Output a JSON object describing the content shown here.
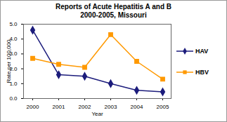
{
  "chart_data": {
    "type": "line",
    "title": "Reports of Acute Hepatitis A and B",
    "subtitle": "2000-2005, Missouri",
    "x_label": "Year",
    "y_label": "Rate per 100,000",
    "categories": [
      "2000",
      "2001",
      "2002",
      "2003",
      "2004",
      "2005"
    ],
    "series": [
      {
        "name": "HAV",
        "color": "#1c1c7c",
        "marker": "diamond",
        "values": [
          4.6,
          1.6,
          1.5,
          1.0,
          0.55,
          0.45
        ]
      },
      {
        "name": "HBV",
        "color": "#ff9900",
        "marker": "square",
        "values": [
          2.7,
          2.3,
          2.1,
          4.3,
          2.5,
          1.3
        ]
      }
    ],
    "ylim": [
      0,
      5
    ],
    "yticks": [
      0,
      1,
      2,
      3,
      4,
      5
    ],
    "grid": false,
    "legend": "right"
  }
}
